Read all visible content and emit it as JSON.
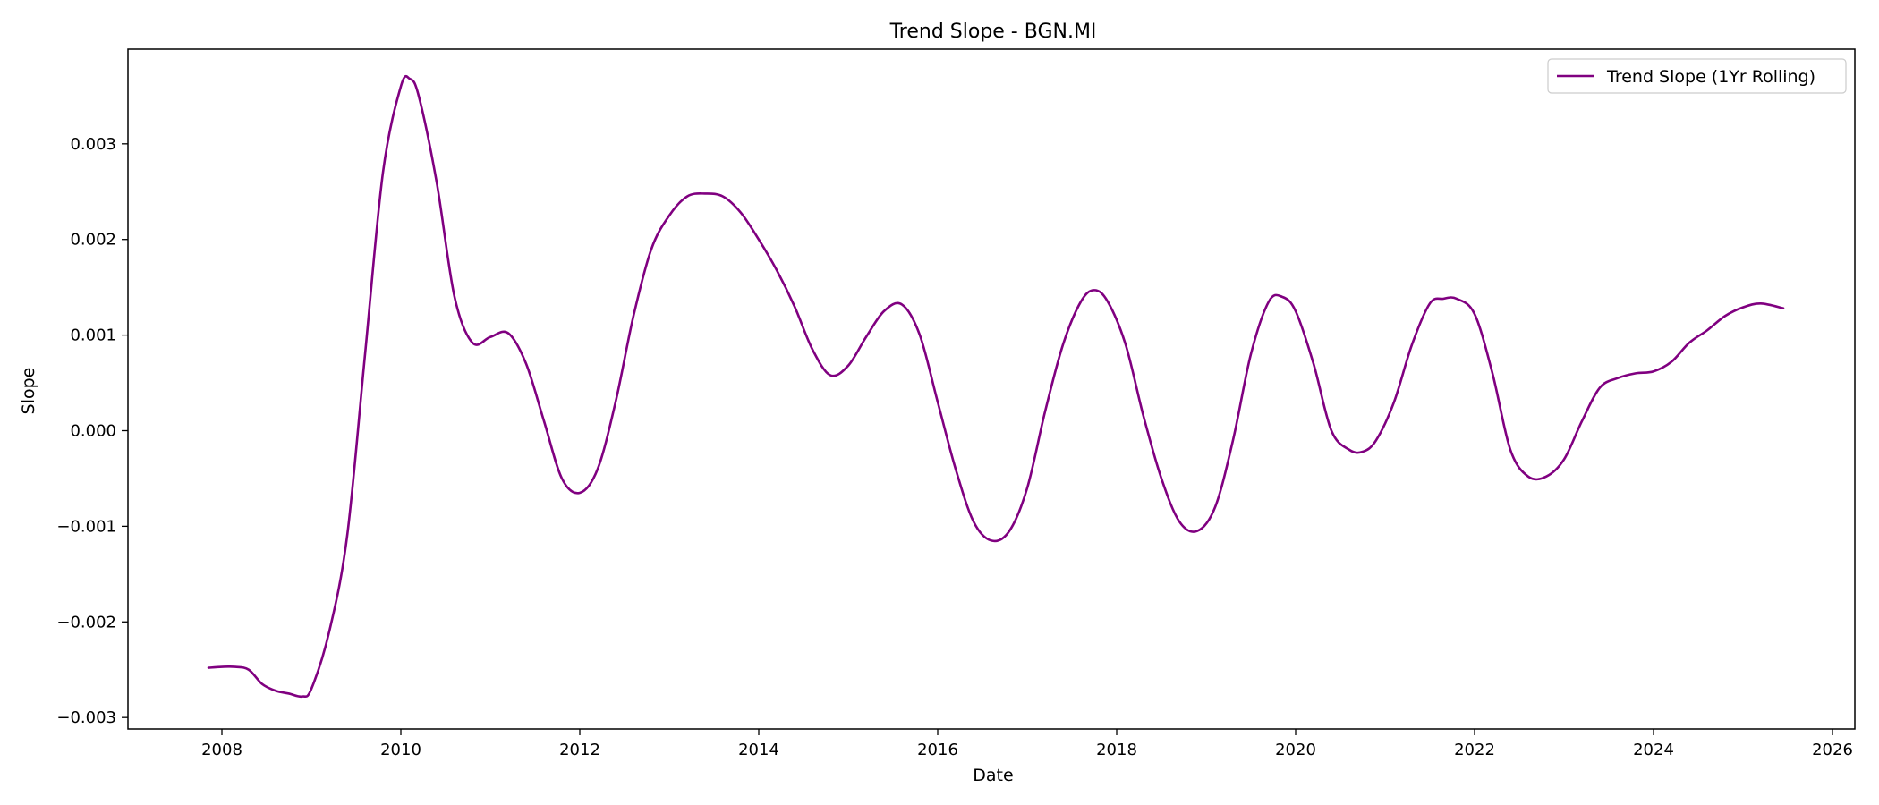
{
  "chart_data": {
    "type": "line",
    "title": "Trend Slope - BGN.MI",
    "xlabel": "Date",
    "ylabel": "Slope",
    "xlim": [
      2006.95,
      2026.25
    ],
    "ylim": [
      -0.00312,
      0.00399
    ],
    "grid": false,
    "legend_position": "top-right",
    "x_ticks": [
      2008,
      2010,
      2012,
      2014,
      2016,
      2018,
      2020,
      2022,
      2024,
      2026
    ],
    "x_tick_labels": [
      "2008",
      "2010",
      "2012",
      "2014",
      "2016",
      "2018",
      "2020",
      "2022",
      "2024",
      "2026"
    ],
    "y_ticks": [
      -0.003,
      -0.002,
      -0.001,
      0.0,
      0.001,
      0.002,
      0.003
    ],
    "y_tick_labels": [
      "−0.003",
      "−0.002",
      "−0.001",
      "0.000",
      "0.001",
      "0.002",
      "0.003"
    ],
    "series": [
      {
        "name": "Trend Slope (1Yr Rolling)",
        "color": "#800080",
        "x": [
          2007.85,
          2008.0,
          2008.15,
          2008.3,
          2008.45,
          2008.6,
          2008.75,
          2008.9,
          2009.0,
          2009.2,
          2009.4,
          2009.6,
          2009.8,
          2010.0,
          2010.1,
          2010.2,
          2010.4,
          2010.6,
          2010.8,
          2011.0,
          2011.2,
          2011.4,
          2011.6,
          2011.8,
          2012.0,
          2012.2,
          2012.4,
          2012.6,
          2012.8,
          2013.0,
          2013.2,
          2013.4,
          2013.6,
          2013.8,
          2014.0,
          2014.2,
          2014.4,
          2014.6,
          2014.8,
          2015.0,
          2015.2,
          2015.4,
          2015.6,
          2015.8,
          2016.0,
          2016.2,
          2016.4,
          2016.6,
          2016.8,
          2017.0,
          2017.2,
          2017.4,
          2017.6,
          2017.75,
          2017.9,
          2018.1,
          2018.3,
          2018.5,
          2018.7,
          2018.9,
          2019.1,
          2019.3,
          2019.5,
          2019.7,
          2019.85,
          2020.0,
          2020.2,
          2020.4,
          2020.6,
          2020.75,
          2020.9,
          2021.1,
          2021.3,
          2021.5,
          2021.65,
          2021.8,
          2022.0,
          2022.2,
          2022.4,
          2022.6,
          2022.8,
          2023.0,
          2023.2,
          2023.4,
          2023.6,
          2023.8,
          2024.0,
          2024.2,
          2024.4,
          2024.6,
          2024.8,
          2025.0,
          2025.2,
          2025.45
        ],
        "y": [
          -0.00248,
          -0.00247,
          -0.00247,
          -0.0025,
          -0.00265,
          -0.00272,
          -0.00275,
          -0.00278,
          -0.0027,
          -0.0021,
          -0.0011,
          0.0008,
          0.0027,
          0.0036,
          0.00368,
          0.0035,
          0.0026,
          0.0014,
          0.00092,
          0.00098,
          0.00102,
          0.0007,
          0.0001,
          -0.0005,
          -0.00065,
          -0.0004,
          0.0003,
          0.0012,
          0.0019,
          0.00225,
          0.00245,
          0.00248,
          0.00245,
          0.00228,
          0.002,
          0.00168,
          0.0013,
          0.00085,
          0.00058,
          0.00068,
          0.00098,
          0.00125,
          0.00132,
          0.001,
          0.0003,
          -0.0004,
          -0.00095,
          -0.00115,
          -0.00105,
          -0.0006,
          0.0002,
          0.0009,
          0.00135,
          0.00147,
          0.00135,
          0.0009,
          0.00015,
          -0.0005,
          -0.00095,
          -0.00105,
          -0.0008,
          -0.0001,
          0.0008,
          0.00135,
          0.0014,
          0.00125,
          0.0007,
          0.0,
          -0.0002,
          -0.00022,
          -0.0001,
          0.0003,
          0.0009,
          0.00133,
          0.00138,
          0.00138,
          0.00122,
          0.0006,
          -0.0002,
          -0.00048,
          -0.00048,
          -0.0003,
          0.0001,
          0.00045,
          0.00055,
          0.0006,
          0.00062,
          0.00072,
          0.00092,
          0.00105,
          0.0012,
          0.00129,
          0.00133,
          0.00128
        ]
      }
    ]
  }
}
